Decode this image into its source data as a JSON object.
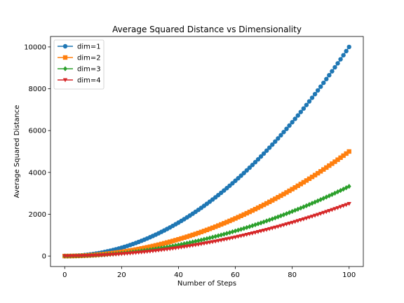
{
  "chart_data": {
    "type": "line",
    "title": "Average Squared Distance vs Dimensionality",
    "xlabel": "Number of Steps",
    "ylabel": "Average Squared Distance",
    "xlim": [
      -5,
      105
    ],
    "ylim": [
      -500,
      10500
    ],
    "xticks": [
      0,
      20,
      40,
      60,
      80,
      100
    ],
    "yticks": [
      0,
      2000,
      4000,
      6000,
      8000,
      10000
    ],
    "grid": false,
    "legend_position": "top-left",
    "x": [
      0,
      1,
      2,
      3,
      4,
      5,
      6,
      7,
      8,
      9,
      10,
      11,
      12,
      13,
      14,
      15,
      16,
      17,
      18,
      19,
      20,
      21,
      22,
      23,
      24,
      25,
      26,
      27,
      28,
      29,
      30,
      31,
      32,
      33,
      34,
      35,
      36,
      37,
      38,
      39,
      40,
      41,
      42,
      43,
      44,
      45,
      46,
      47,
      48,
      49,
      50,
      51,
      52,
      53,
      54,
      55,
      56,
      57,
      58,
      59,
      60,
      61,
      62,
      63,
      64,
      65,
      66,
      67,
      68,
      69,
      70,
      71,
      72,
      73,
      74,
      75,
      76,
      77,
      78,
      79,
      80,
      81,
      82,
      83,
      84,
      85,
      86,
      87,
      88,
      89,
      90,
      91,
      92,
      93,
      94,
      95,
      96,
      97,
      98,
      99,
      100
    ],
    "series": [
      {
        "name": "dim=1",
        "color": "#1f77b4",
        "marker": "circle",
        "values": [
          0,
          1,
          4,
          9,
          16,
          25,
          36,
          49,
          64,
          81,
          100,
          121,
          144,
          169,
          196,
          225,
          256,
          289,
          324,
          361,
          400,
          441,
          484,
          529,
          576,
          625,
          676,
          729,
          784,
          841,
          900,
          961,
          1024,
          1089,
          1156,
          1225,
          1296,
          1369,
          1444,
          1521,
          1600,
          1681,
          1764,
          1849,
          1936,
          2025,
          2116,
          2209,
          2304,
          2401,
          2500,
          2601,
          2704,
          2809,
          2916,
          3025,
          3136,
          3249,
          3364,
          3481,
          3600,
          3721,
          3844,
          3969,
          4096,
          4225,
          4356,
          4489,
          4624,
          4761,
          4900,
          5041,
          5184,
          5329,
          5476,
          5625,
          5776,
          5929,
          6084,
          6241,
          6400,
          6561,
          6724,
          6889,
          7056,
          7225,
          7396,
          7569,
          7744,
          7921,
          8100,
          8281,
          8464,
          8649,
          8836,
          9025,
          9216,
          9409,
          9604,
          9801,
          10000
        ]
      },
      {
        "name": "dim=2",
        "color": "#ff7f0e",
        "marker": "square",
        "values": [
          0,
          0.5,
          2,
          4.5,
          8,
          12.5,
          18,
          24.5,
          32,
          40.5,
          50,
          60.5,
          72,
          84.5,
          98,
          112.5,
          128,
          144.5,
          162,
          180.5,
          200,
          220.5,
          242,
          264.5,
          288,
          312.5,
          338,
          364.5,
          392,
          420.5,
          450,
          480.5,
          512,
          544.5,
          578,
          612.5,
          648,
          684.5,
          722,
          760.5,
          800,
          840.5,
          882,
          924.5,
          968,
          1012.5,
          1058,
          1104.5,
          1152,
          1200.5,
          1250,
          1300.5,
          1352,
          1404.5,
          1458,
          1512.5,
          1568,
          1624.5,
          1682,
          1740.5,
          1800,
          1860.5,
          1922,
          1984.5,
          2048,
          2112.5,
          2178,
          2244.5,
          2312,
          2380.5,
          2450,
          2520.5,
          2592,
          2664.5,
          2738,
          2812.5,
          2888,
          2964.5,
          3042,
          3120.5,
          3200,
          3280.5,
          3362,
          3444.5,
          3528,
          3612.5,
          3698,
          3784.5,
          3872,
          3960.5,
          4050,
          4140.5,
          4232,
          4324.5,
          4418,
          4512.5,
          4608,
          4704.5,
          4802,
          4900.5,
          5000
        ]
      },
      {
        "name": "dim=3",
        "color": "#2ca02c",
        "marker": "diamond",
        "values": [
          0,
          0.33,
          1.33,
          3,
          5.33,
          8.33,
          12,
          16.33,
          21.33,
          27,
          33.33,
          40.33,
          48,
          56.33,
          65.33,
          75,
          85.33,
          96.33,
          108,
          120.33,
          133.33,
          147,
          161.33,
          176.33,
          192,
          208.33,
          225.33,
          243,
          261.33,
          280.33,
          300,
          320.33,
          341.33,
          363,
          385.33,
          408.33,
          432,
          456.33,
          481.33,
          507,
          533.33,
          560.33,
          588,
          616.33,
          645.33,
          675,
          705.33,
          736.33,
          768,
          800.33,
          833.33,
          867,
          901.33,
          936.33,
          972,
          1008.33,
          1045.33,
          1083,
          1121.33,
          1160.33,
          1200,
          1240.33,
          1281.33,
          1323,
          1365.33,
          1408.33,
          1452,
          1496.33,
          1541.33,
          1587,
          1633.33,
          1680.33,
          1728,
          1776.33,
          1825.33,
          1875,
          1925.33,
          1976.33,
          2028,
          2080.33,
          2133.33,
          2187,
          2241.33,
          2296.33,
          2352,
          2408.33,
          2465.33,
          2523,
          2581.33,
          2640.33,
          2700,
          2760.33,
          2821.33,
          2883,
          2945.33,
          3008.33,
          3072,
          3136.33,
          3201.33,
          3267,
          3333.33
        ]
      },
      {
        "name": "dim=4",
        "color": "#d62728",
        "marker": "triangle-down",
        "values": [
          0,
          0.25,
          1,
          2.25,
          4,
          6.25,
          9,
          12.25,
          16,
          20.25,
          25,
          30.25,
          36,
          42.25,
          49,
          56.25,
          64,
          72.25,
          81,
          90.25,
          100,
          110.25,
          121,
          132.25,
          144,
          156.25,
          169,
          182.25,
          196,
          210.25,
          225,
          240.25,
          256,
          272.25,
          289,
          306.25,
          324,
          342.25,
          361,
          380.25,
          400,
          420.25,
          441,
          462.25,
          484,
          506.25,
          529,
          552.25,
          576,
          600.25,
          625,
          650.25,
          676,
          702.25,
          729,
          756.25,
          784,
          812.25,
          841,
          870.25,
          900,
          930.25,
          961,
          992.25,
          1024,
          1056.25,
          1089,
          1122.25,
          1156,
          1190.25,
          1225,
          1260.25,
          1296,
          1332.25,
          1369,
          1406.25,
          1444,
          1482.25,
          1521,
          1560.25,
          1600,
          1640.25,
          1681,
          1722.25,
          1764,
          1806.25,
          1849,
          1892.25,
          1936,
          1980.25,
          2025,
          2070.25,
          2116,
          2162.25,
          2209,
          2256.25,
          2304,
          2352.25,
          2401,
          2450.25,
          2500
        ]
      }
    ]
  }
}
